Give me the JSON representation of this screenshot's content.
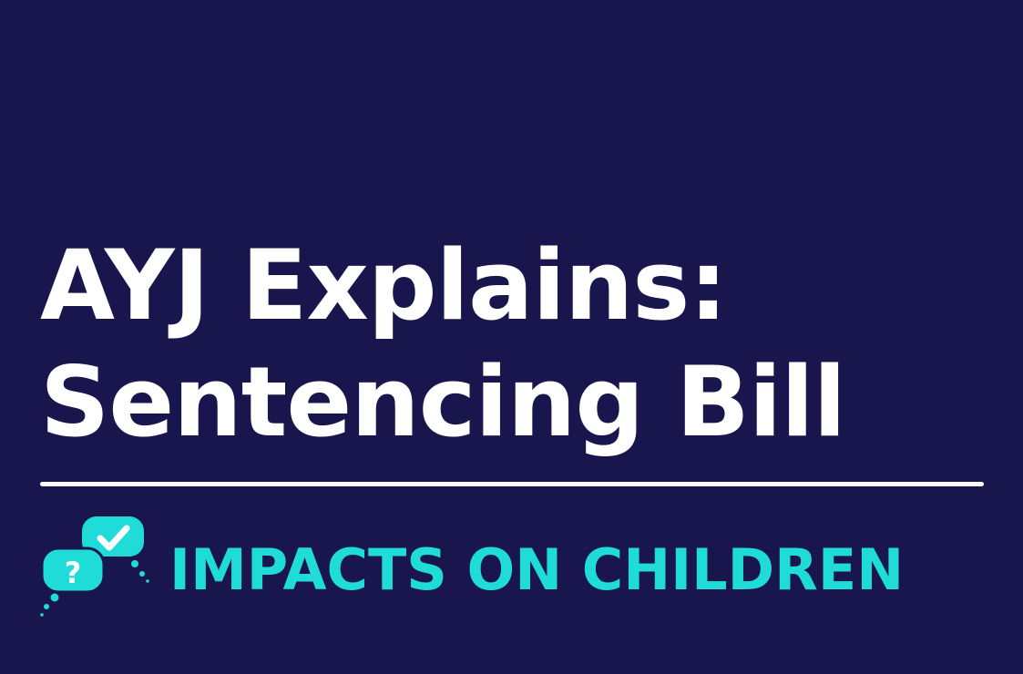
{
  "title": {
    "line1": "AYJ Explains:",
    "line2": "Sentencing Bill"
  },
  "subtitle": "IMPACTS ON CHILDREN",
  "icon": "speech-bubbles-question-check-icon",
  "colors": {
    "background": "#18164d",
    "title": "#ffffff",
    "accent": "#1fdcd8",
    "divider": "#ffffff"
  }
}
